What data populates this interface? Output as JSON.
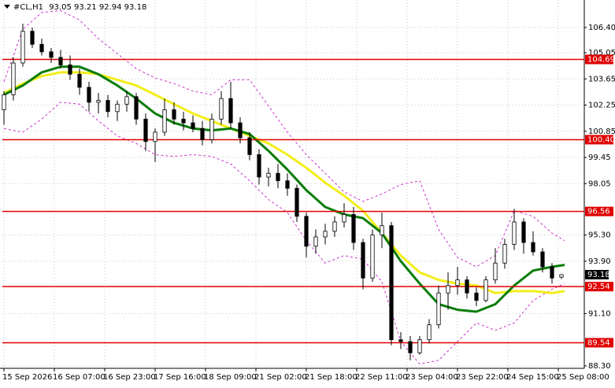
{
  "chart_data": {
    "type": "candlestick",
    "symbol": "#CL,H1",
    "xlim": [
      -0.5,
      184.25
    ],
    "ylim": [
      88.17,
      107.87
    ],
    "grid": true,
    "xticks": [
      {
        "value": 0,
        "label": "15 Sep 2026"
      },
      {
        "value": 16,
        "label": "16 Sep 07:00"
      },
      {
        "value": 32,
        "label": "16 Sep 23:00"
      },
      {
        "value": 48,
        "label": "17 Sep 16:00"
      },
      {
        "value": 64,
        "label": "18 Sep 09:00"
      },
      {
        "value": 80,
        "label": "21 Sep 02:00"
      },
      {
        "value": 96,
        "label": "21 Sep 18:00"
      },
      {
        "value": 112,
        "label": "22 Sep 11:00"
      },
      {
        "value": 128,
        "label": "23 Sep 04:00"
      },
      {
        "value": 144,
        "label": "23 Sep 22:00"
      },
      {
        "value": 160,
        "label": "24 Sep 15:00"
      },
      {
        "value": 176,
        "label": "25 Sep 08:00"
      }
    ],
    "yticks": [
      {
        "value": 106.4,
        "label": "106.40"
      },
      {
        "value": 105.05,
        "label": "105.05"
      },
      {
        "value": 103.65,
        "label": "103.65"
      },
      {
        "value": 102.25,
        "label": "102.25"
      },
      {
        "value": 100.85,
        "label": "100.85"
      },
      {
        "value": 99.45,
        "label": "99.45"
      },
      {
        "value": 98.05,
        "label": "98.05"
      },
      {
        "value": 95.3,
        "label": "95.30"
      },
      {
        "value": 93.9,
        "label": "93.90"
      },
      {
        "value": 91.1,
        "label": "91.10"
      },
      {
        "value": 88.3,
        "label": "88.30"
      }
    ],
    "candles": {
      "up_color": "#ffffff",
      "down_color": "#000000",
      "x": [
        0,
        3,
        6,
        9,
        12,
        15,
        18,
        21,
        24,
        27,
        30,
        33,
        36,
        39,
        42,
        45,
        48,
        51,
        54,
        57,
        60,
        63,
        66,
        69,
        72,
        75,
        78,
        81,
        84,
        87,
        90,
        93,
        96,
        99,
        102,
        105,
        108,
        111,
        114,
        117,
        120,
        123,
        126,
        129,
        132,
        135,
        138,
        141,
        144,
        147,
        150,
        153,
        156,
        159,
        162,
        165,
        168,
        171,
        174,
        177
      ],
      "open": [
        102.0,
        102.8,
        104.5,
        106.2,
        105.5,
        105.1,
        104.8,
        104.4,
        103.9,
        103.2,
        102.4,
        102.5,
        101.9,
        102.3,
        102.7,
        101.5,
        100.3,
        100.8,
        102.0,
        101.5,
        101.3,
        101.0,
        100.4,
        101.5,
        102.6,
        101.3,
        100.5,
        99.6,
        98.4,
        98.6,
        98.2,
        97.8,
        96.3,
        94.7,
        95.2,
        95.5,
        96.0,
        96.4,
        94.9,
        93.0,
        95.3,
        95.8,
        89.7,
        89.6,
        89.0,
        89.7,
        90.5,
        92.2,
        92.6,
        92.9,
        92.2,
        91.8,
        92.9,
        93.8,
        94.8,
        96.0,
        94.9,
        94.4,
        93.6,
        93.05
      ],
      "high": [
        103.0,
        104.8,
        106.6,
        106.4,
        105.8,
        105.3,
        105.2,
        104.9,
        104.2,
        103.5,
        102.9,
        102.8,
        102.5,
        103.0,
        102.9,
        101.8,
        101.0,
        102.6,
        102.4,
        101.9,
        101.7,
        101.4,
        101.8,
        103.0,
        103.5,
        101.6,
        100.8,
        99.9,
        98.9,
        99.1,
        98.6,
        98.0,
        96.5,
        95.6,
        95.9,
        96.3,
        97.0,
        96.8,
        95.1,
        95.6,
        96.5,
        96.0,
        90.1,
        89.9,
        89.9,
        90.8,
        92.6,
        93.3,
        93.6,
        93.1,
        92.5,
        93.1,
        94.6,
        95.1,
        96.7,
        96.2,
        95.5,
        94.6,
        93.8,
        93.21
      ],
      "low": [
        101.2,
        102.5,
        104.3,
        105.3,
        104.9,
        104.5,
        104.2,
        103.6,
        102.8,
        101.9,
        101.8,
        101.6,
        101.4,
        101.9,
        101.2,
        99.8,
        99.2,
        100.6,
        101.2,
        100.9,
        100.8,
        100.1,
        100.2,
        101.2,
        101.0,
        100.2,
        99.3,
        98.0,
        97.9,
        97.8,
        97.4,
        96.0,
        94.1,
        94.3,
        94.8,
        95.2,
        95.7,
        94.5,
        92.4,
        92.8,
        94.6,
        89.4,
        89.2,
        88.6,
        88.9,
        89.5,
        90.3,
        91.3,
        92.1,
        91.9,
        91.5,
        91.7,
        92.7,
        93.5,
        94.5,
        94.3,
        94.2,
        93.3,
        92.7,
        92.94
      ],
      "close": [
        102.8,
        104.5,
        106.2,
        105.5,
        105.1,
        104.8,
        104.4,
        103.9,
        103.2,
        102.4,
        102.5,
        101.9,
        102.3,
        102.7,
        101.5,
        100.3,
        100.8,
        102.0,
        101.5,
        101.3,
        101.0,
        100.4,
        101.5,
        102.6,
        101.3,
        100.5,
        99.6,
        98.4,
        98.6,
        98.2,
        97.8,
        96.3,
        94.7,
        95.2,
        95.5,
        96.0,
        96.4,
        94.9,
        93.0,
        95.3,
        95.8,
        89.7,
        89.6,
        89.0,
        89.7,
        90.5,
        92.2,
        92.6,
        92.9,
        92.2,
        91.8,
        92.9,
        93.8,
        94.8,
        96.0,
        94.9,
        94.4,
        93.6,
        93.0,
        93.18
      ]
    },
    "line_x": [
      0,
      6,
      12,
      18,
      24,
      30,
      36,
      42,
      48,
      54,
      60,
      66,
      72,
      78,
      84,
      90,
      96,
      102,
      108,
      114,
      120,
      126,
      132,
      138,
      144,
      150,
      156,
      162,
      168,
      174,
      178
    ],
    "lines": [
      {
        "color": "#cc33cc",
        "style": "dashed",
        "values": [
          103.5,
          106.3,
          107.2,
          107.3,
          106.8,
          105.8,
          105.0,
          104.2,
          103.7,
          103.4,
          103.0,
          102.8,
          103.6,
          103.6,
          102.2,
          100.8,
          99.6,
          98.6,
          97.6,
          97.1,
          97.5,
          98.0,
          98.2,
          95.6,
          94.1,
          93.6,
          94.2,
          96.6,
          96.3,
          95.4,
          95.0
        ]
      },
      {
        "color": "#cc33cc",
        "style": "dashed",
        "values": [
          101.0,
          100.8,
          101.5,
          102.4,
          102.3,
          101.4,
          100.6,
          100.2,
          99.6,
          99.5,
          99.6,
          99.5,
          99.1,
          98.2,
          97.2,
          96.5,
          95.0,
          93.8,
          94.2,
          94.0,
          92.8,
          89.6,
          88.4,
          88.6,
          89.6,
          90.6,
          90.2,
          90.6,
          91.8,
          92.4,
          92.7
        ]
      },
      {
        "color": "#f2ee1a",
        "style": "solid",
        "values": [
          102.9,
          103.4,
          103.8,
          104.0,
          104.0,
          103.9,
          103.6,
          103.3,
          102.8,
          102.3,
          101.8,
          101.4,
          101.0,
          100.6,
          100.2,
          99.6,
          98.9,
          98.1,
          97.4,
          96.6,
          95.4,
          94.2,
          93.3,
          92.9,
          92.7,
          92.6,
          92.2,
          92.3,
          92.3,
          92.2,
          92.3
        ]
      },
      {
        "color": "#0a7d0a",
        "style": "solid",
        "values": [
          102.8,
          103.3,
          104.0,
          104.3,
          104.3,
          103.9,
          103.3,
          102.6,
          101.8,
          101.3,
          101.0,
          100.9,
          101.0,
          100.7,
          99.8,
          98.8,
          97.7,
          96.8,
          96.4,
          96.2,
          95.4,
          93.9,
          92.7,
          91.6,
          91.3,
          91.2,
          91.6,
          92.6,
          93.4,
          93.6,
          93.7
        ]
      }
    ],
    "levels": {
      "color": "#e00000",
      "values": [
        104.69,
        100.4,
        96.56,
        92.54,
        89.54
      ],
      "value_labels": [
        "104.69",
        "100.40",
        "96.56",
        "92.54",
        "89.54"
      ]
    }
  }
}
